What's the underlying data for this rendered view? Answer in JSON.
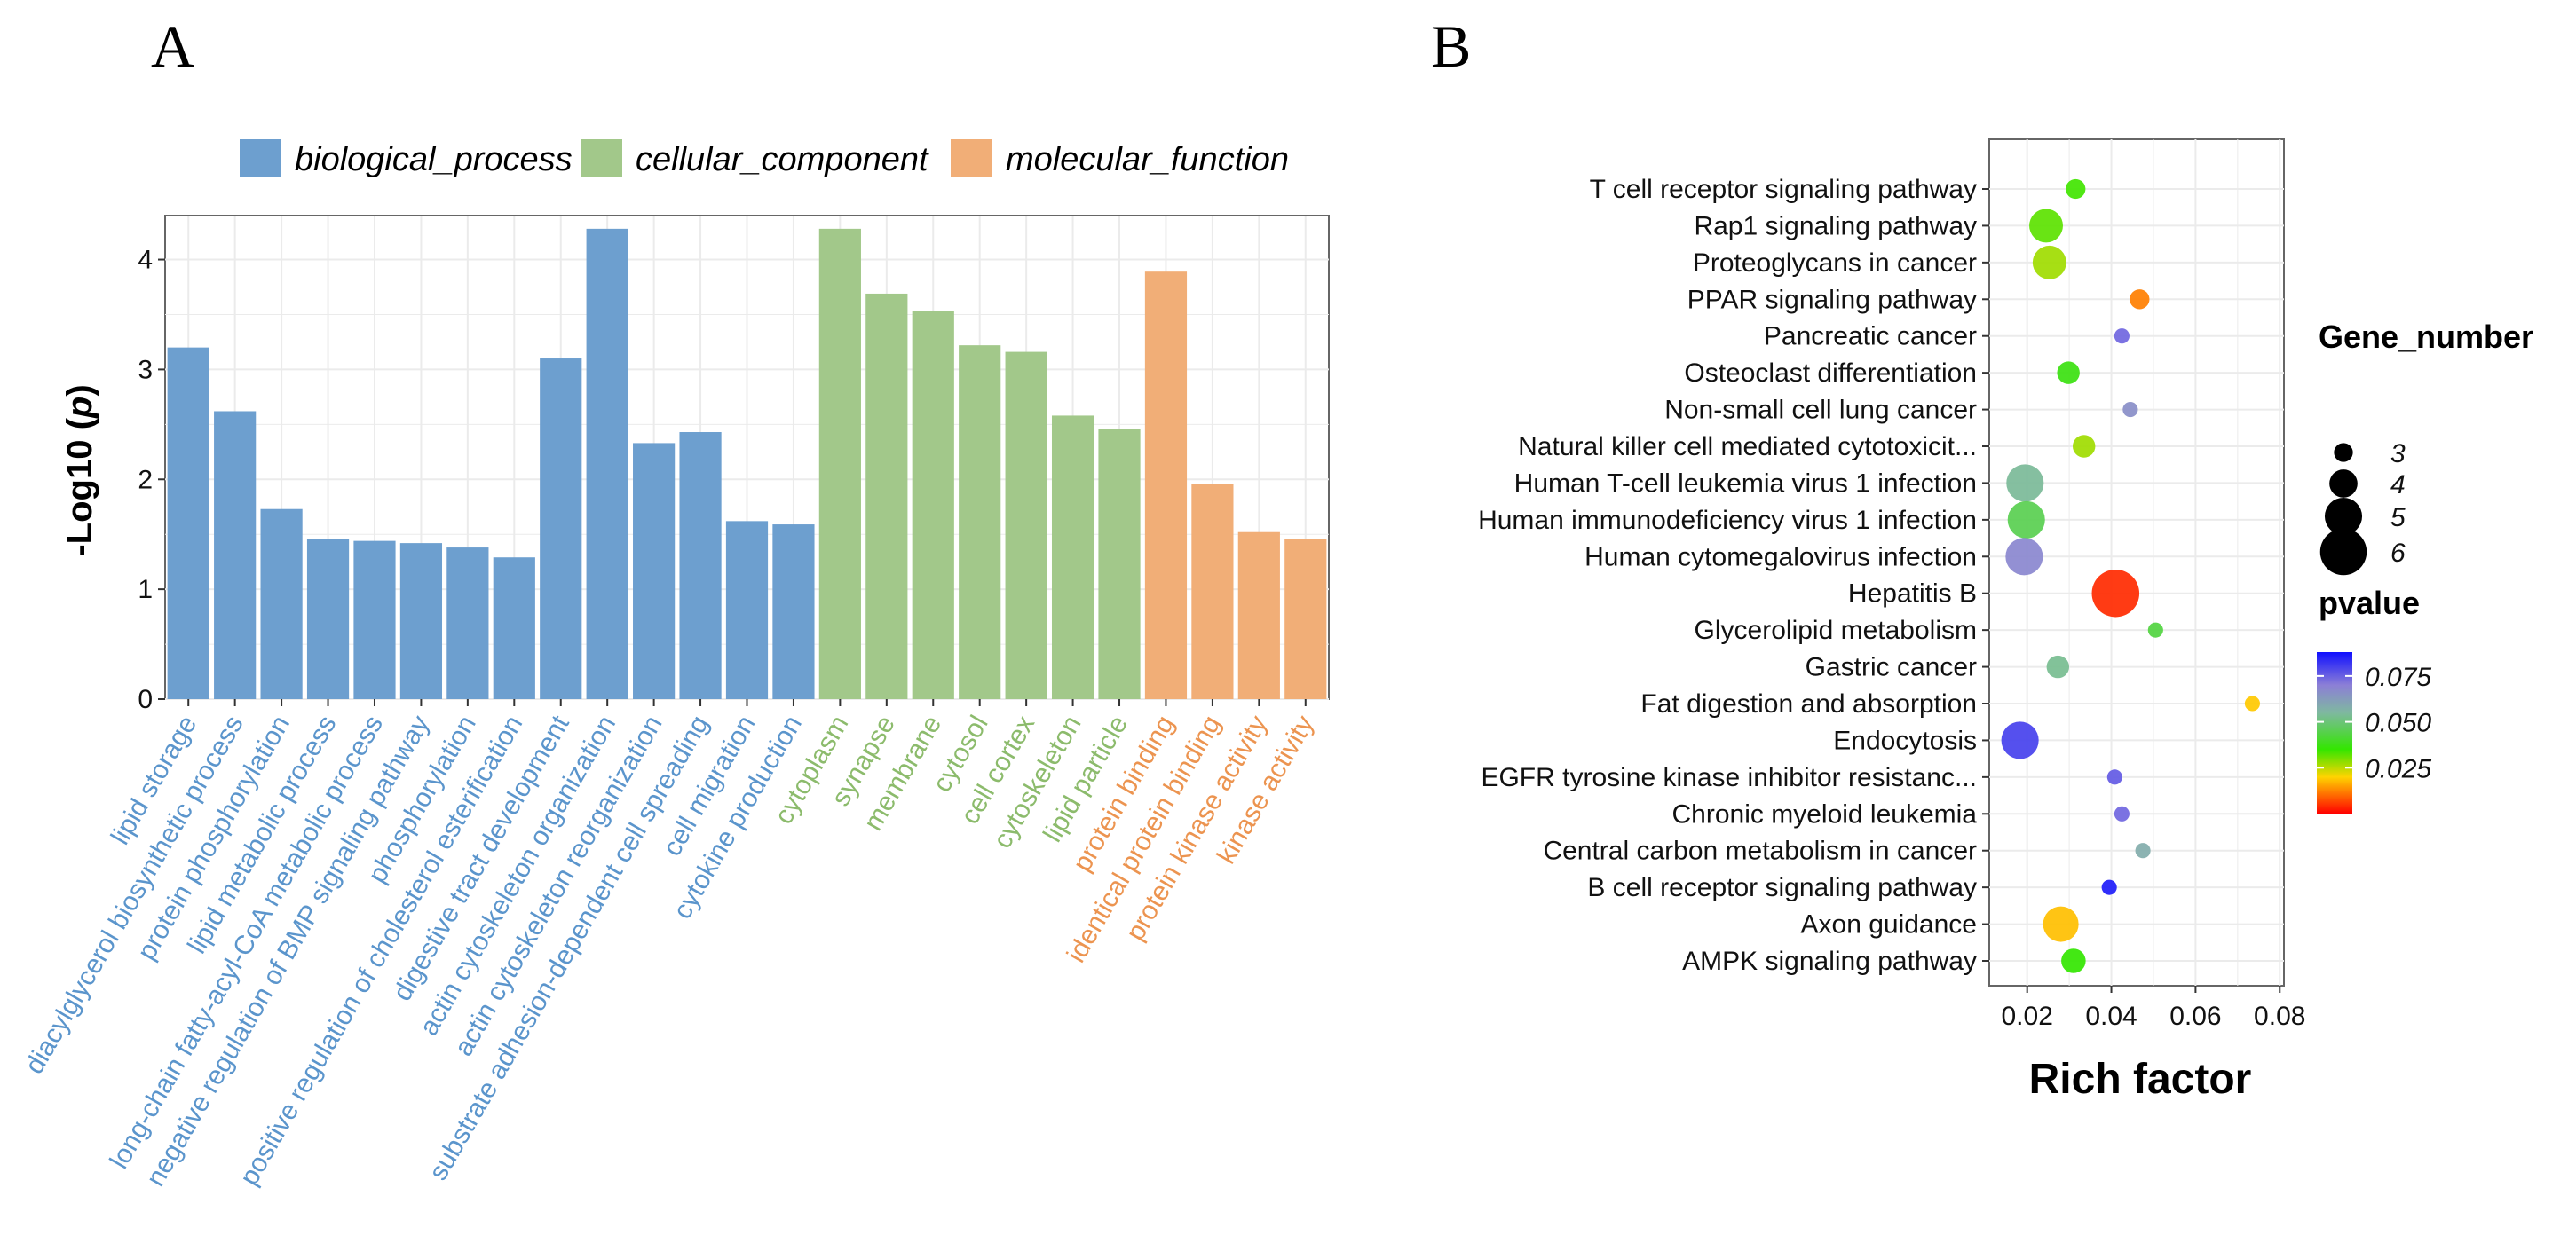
{
  "panels": {
    "a": "A",
    "b": "B"
  },
  "colors": {
    "biological_process": "#6d9fcf",
    "cellular_component": "#a2c88a",
    "molecular_function": "#f1ae77",
    "biological_process_text": "#5b95cc",
    "cellular_component_text": "#8cbb6c",
    "molecular_function_text": "#ec9450"
  },
  "chart_data": [
    {
      "type": "bar",
      "title": "",
      "xlabel": "",
      "ylabel": "-Log10 (p)",
      "ylabel_prefix": "-Log10 (",
      "ylabel_var": "p",
      "ylabel_suffix": ")",
      "ylim": [
        0,
        4.4
      ],
      "yticks": [
        "0",
        "1",
        "2",
        "3",
        "4"
      ],
      "grid": true,
      "legend_position": "top",
      "legend": [
        {
          "key": "biological_process",
          "label": "biological_process"
        },
        {
          "key": "cellular_component",
          "label": "cellular_component"
        },
        {
          "key": "molecular_function",
          "label": "molecular_function"
        }
      ],
      "categories": [
        {
          "label": "lipid storage",
          "group": "biological_process",
          "value": 3.2
        },
        {
          "label": "diacylglycerol biosynthetic process",
          "group": "biological_process",
          "value": 2.62
        },
        {
          "label": "protein phosphorylation",
          "group": "biological_process",
          "value": 1.73
        },
        {
          "label": "lipid metabolic process",
          "group": "biological_process",
          "value": 1.46
        },
        {
          "label": "long-chain fatty-acyl-CoA metabolic process",
          "group": "biological_process",
          "value": 1.44
        },
        {
          "label": "negative regulation of BMP signaling pathway",
          "group": "biological_process",
          "value": 1.42
        },
        {
          "label": "phosphorylation",
          "group": "biological_process",
          "value": 1.38
        },
        {
          "label": "positive regulation of cholesterol esterification",
          "group": "biological_process",
          "value": 1.29
        },
        {
          "label": "digestive tract development",
          "group": "biological_process",
          "value": 3.1
        },
        {
          "label": "actin cytoskeleton organization",
          "group": "biological_process",
          "value": 4.28
        },
        {
          "label": "actin cytoskeleton reorganization",
          "group": "biological_process",
          "value": 2.33
        },
        {
          "label": "substrate adhesion-dependent cell spreading",
          "group": "biological_process",
          "value": 2.43
        },
        {
          "label": "cell migration",
          "group": "biological_process",
          "value": 1.62
        },
        {
          "label": "cytokine production",
          "group": "biological_process",
          "value": 1.59
        },
        {
          "label": "cytoplasm",
          "group": "cellular_component",
          "value": 4.28
        },
        {
          "label": "synapse",
          "group": "cellular_component",
          "value": 3.69
        },
        {
          "label": "membrane",
          "group": "cellular_component",
          "value": 3.53
        },
        {
          "label": "cytosol",
          "group": "cellular_component",
          "value": 3.22
        },
        {
          "label": "cell cortex",
          "group": "cellular_component",
          "value": 3.16
        },
        {
          "label": "cytoskeleton",
          "group": "cellular_component",
          "value": 2.58
        },
        {
          "label": "lipid particle",
          "group": "cellular_component",
          "value": 2.46
        },
        {
          "label": "protein binding",
          "group": "molecular_function",
          "value": 3.89
        },
        {
          "label": "identical protein binding",
          "group": "molecular_function",
          "value": 1.96
        },
        {
          "label": "protein kinase activity",
          "group": "molecular_function",
          "value": 1.52
        },
        {
          "label": "kinase activity",
          "group": "molecular_function",
          "value": 1.46
        }
      ]
    },
    {
      "type": "scatter",
      "title": "",
      "xlabel": "Rich factor",
      "ylabel": "",
      "xlim": [
        0.011,
        0.081
      ],
      "xticks": [
        0.02,
        0.04,
        0.06,
        0.08
      ],
      "xtick_labels": [
        "0.02",
        "0.04",
        "0.06",
        "0.08"
      ],
      "grid": true,
      "size_legend": {
        "title": "Gene_number",
        "values": [
          3,
          4,
          5,
          6
        ],
        "labels": [
          "3",
          "4",
          "5",
          "6"
        ]
      },
      "color_legend": {
        "title": "pvalue",
        "range": [
          0.0,
          0.088
        ],
        "ticks": [
          0.075,
          0.05,
          0.025
        ],
        "tick_labels": [
          "0.075",
          "0.050",
          "0.025"
        ],
        "stops": [
          {
            "value": 0.0,
            "color": "#ff0000"
          },
          {
            "value": 0.02,
            "color": "#ffd400"
          },
          {
            "value": 0.035,
            "color": "#33e600"
          },
          {
            "value": 0.055,
            "color": "#7fb8a0"
          },
          {
            "value": 0.07,
            "color": "#8c7fd6"
          },
          {
            "value": 0.088,
            "color": "#1010ff"
          }
        ]
      },
      "points": [
        {
          "term": "T cell receptor signaling pathway",
          "x": 0.0315,
          "genes": 3.3,
          "p": 0.034
        },
        {
          "term": "Rap1 signaling pathway",
          "x": 0.0245,
          "genes": 4.8,
          "p": 0.032
        },
        {
          "term": "Proteoglycans in cancer",
          "x": 0.0253,
          "genes": 4.8,
          "p": 0.027
        },
        {
          "term": "PPAR signaling pathway",
          "x": 0.0467,
          "genes": 3.3,
          "p": 0.012
        },
        {
          "term": "Pancreatic cancer",
          "x": 0.0425,
          "genes": 2.8,
          "p": 0.074
        },
        {
          "term": "Osteoclast differentiation",
          "x": 0.0298,
          "genes": 3.6,
          "p": 0.037
        },
        {
          "term": "Non-small cell lung cancer",
          "x": 0.0445,
          "genes": 2.8,
          "p": 0.066
        },
        {
          "term": "Natural killer cell mediated cytotoxicit...",
          "x": 0.0335,
          "genes": 3.6,
          "p": 0.027
        },
        {
          "term": "Human T-cell leukemia virus 1 infection",
          "x": 0.0195,
          "genes": 5.2,
          "p": 0.054
        },
        {
          "term": "Human immunodeficiency virus 1 infection",
          "x": 0.0198,
          "genes": 5.2,
          "p": 0.045
        },
        {
          "term": "Human cytomegalovirus infection",
          "x": 0.0193,
          "genes": 5.2,
          "p": 0.068
        },
        {
          "term": "Hepatitis B",
          "x": 0.041,
          "genes": 6.3,
          "p": 0.004
        },
        {
          "term": "Glycerolipid metabolism",
          "x": 0.0505,
          "genes": 2.8,
          "p": 0.043
        },
        {
          "term": "Gastric cancer",
          "x": 0.0273,
          "genes": 3.6,
          "p": 0.053
        },
        {
          "term": "Fat digestion and absorption",
          "x": 0.0735,
          "genes": 2.8,
          "p": 0.019
        },
        {
          "term": "Endocytosis",
          "x": 0.0183,
          "genes": 5.2,
          "p": 0.08
        },
        {
          "term": "EGFR tyrosine kinase inhibitor resistanc...",
          "x": 0.0408,
          "genes": 2.8,
          "p": 0.076
        },
        {
          "term": "Chronic myeloid leukemia",
          "x": 0.0425,
          "genes": 2.8,
          "p": 0.074
        },
        {
          "term": "Central carbon metabolism in cancer",
          "x": 0.0475,
          "genes": 2.8,
          "p": 0.058
        },
        {
          "term": "B cell receptor signaling pathway",
          "x": 0.0395,
          "genes": 2.8,
          "p": 0.086
        },
        {
          "term": "Axon guidance",
          "x": 0.028,
          "genes": 5.0,
          "p": 0.018
        },
        {
          "term": "AMPK signaling pathway",
          "x": 0.031,
          "genes": 3.8,
          "p": 0.035
        }
      ]
    }
  ]
}
